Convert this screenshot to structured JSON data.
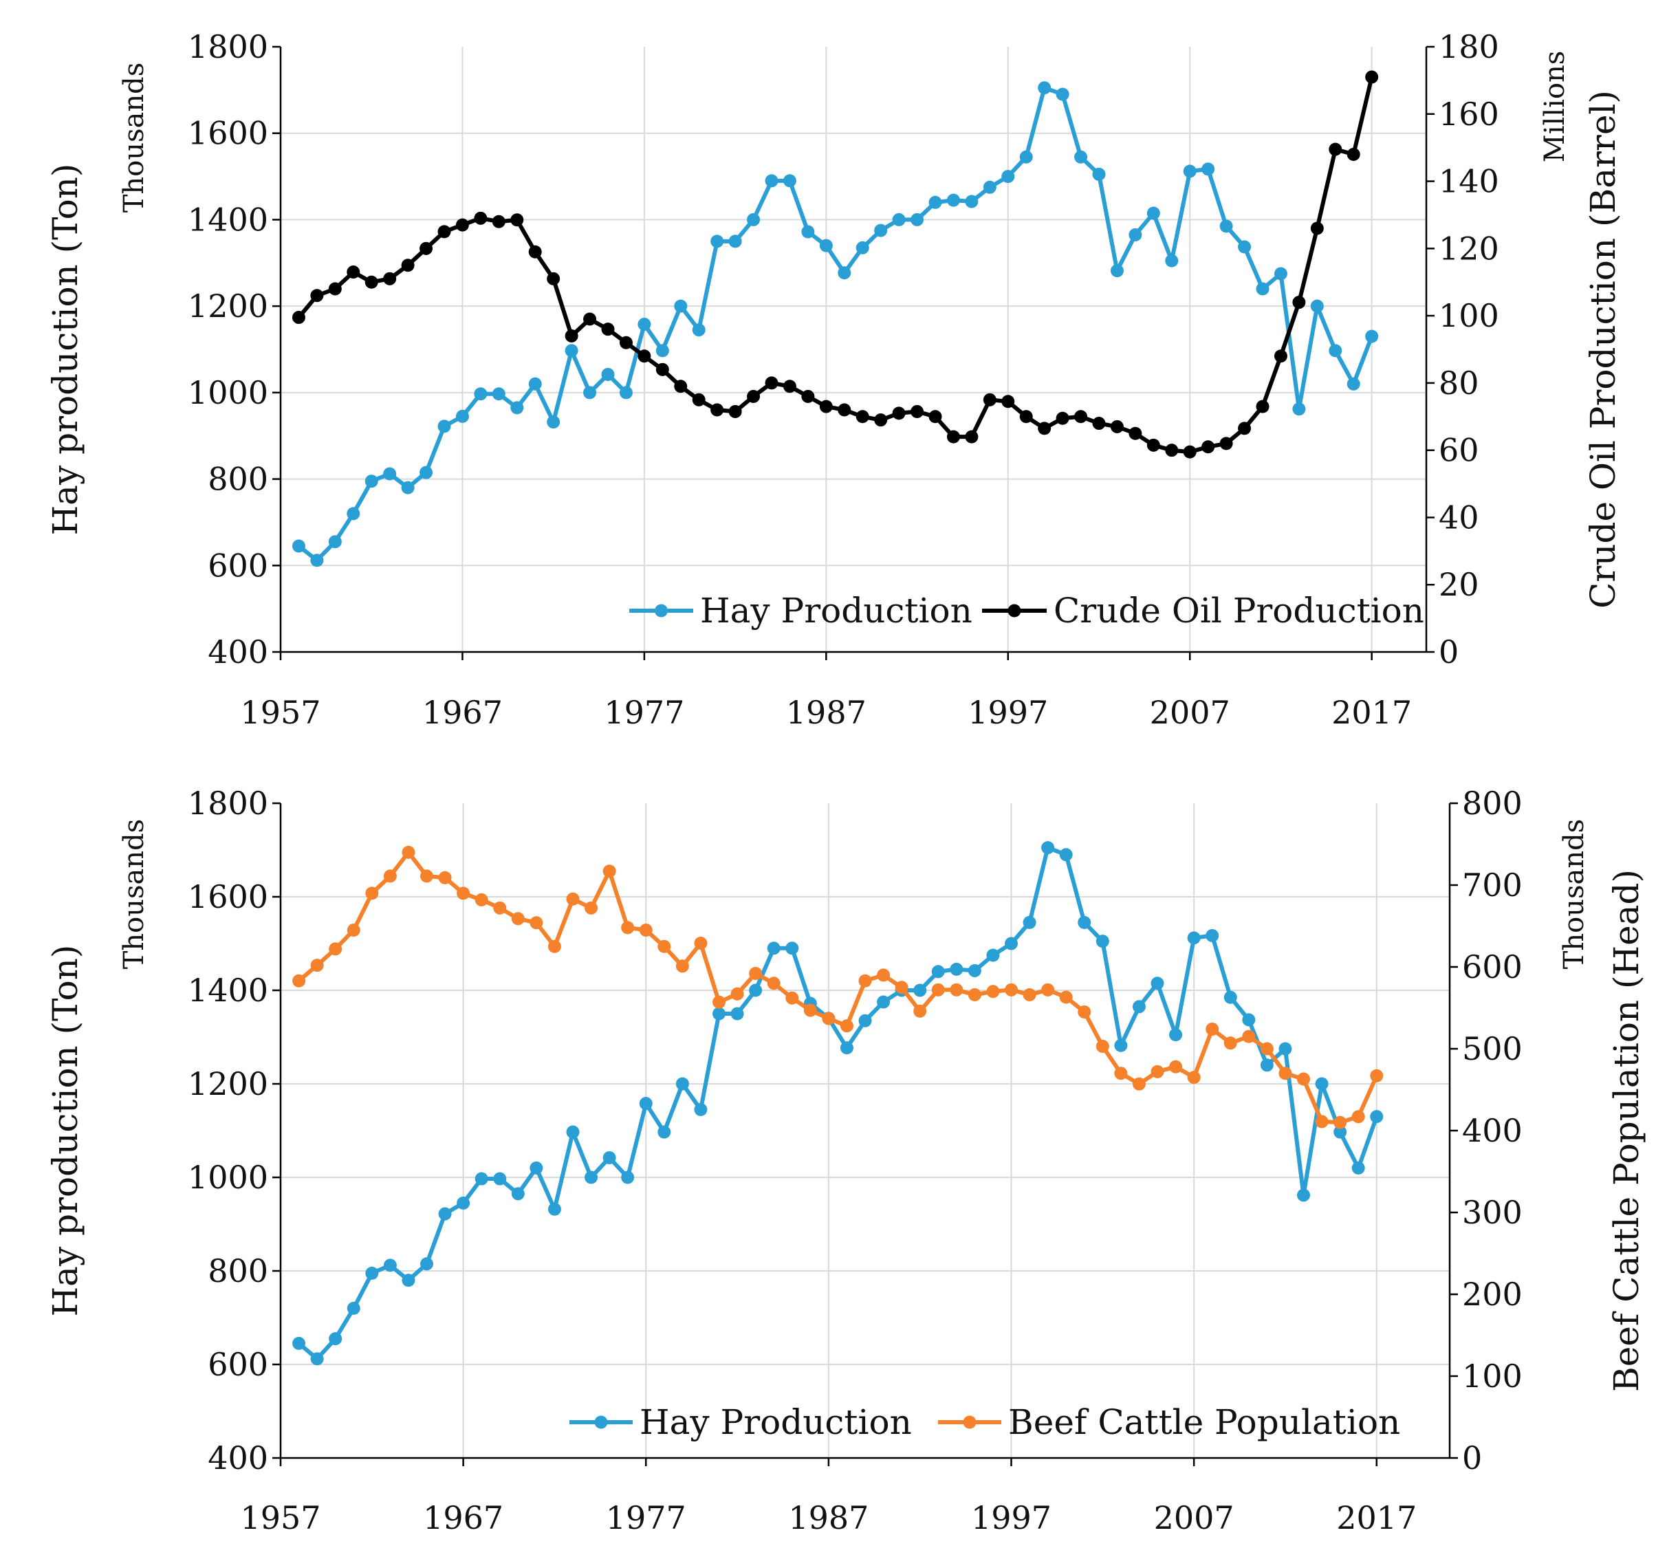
{
  "chart_data": [
    {
      "type": "line",
      "x_ticks": [
        "1957",
        "1967",
        "1977",
        "1987",
        "1997",
        "2007",
        "2017"
      ],
      "xlim": [
        1957,
        2020
      ],
      "ylabel_left": "Hay production (Ton)",
      "ylabel_left_unit": "Thousands",
      "ylim_left": [
        400,
        1800
      ],
      "yticks_left": [
        "400",
        "600",
        "800",
        "1000",
        "1200",
        "1400",
        "1600",
        "1800"
      ],
      "ylabel_right": "Crude Oil Production (Barrel)",
      "ylabel_right_unit": "Millions",
      "ylim_right": [
        0,
        180
      ],
      "yticks_right": [
        "0",
        "20",
        "40",
        "60",
        "80",
        "100",
        "120",
        "140",
        "160",
        "180"
      ],
      "grid": true,
      "legend_position": "bottom-right",
      "series": [
        {
          "name": "Hay Production",
          "axis": "left",
          "color": "#2a9fd6",
          "x": [
            1958,
            1959,
            1960,
            1961,
            1962,
            1963,
            1964,
            1965,
            1966,
            1967,
            1968,
            1969,
            1970,
            1971,
            1972,
            1973,
            1974,
            1975,
            1976,
            1977,
            1978,
            1979,
            1980,
            1981,
            1982,
            1983,
            1984,
            1985,
            1986,
            1987,
            1988,
            1989,
            1990,
            1991,
            1992,
            1993,
            1994,
            1995,
            1996,
            1997,
            1998,
            1999,
            2000,
            2001,
            2002,
            2003,
            2004,
            2005,
            2006,
            2007,
            2008,
            2009,
            2010,
            2011,
            2012,
            2013,
            2014,
            2015,
            2016,
            2017
          ],
          "values": [
            645,
            612,
            655,
            720,
            795,
            812,
            780,
            815,
            922,
            945,
            997,
            997,
            965,
            1020,
            932,
            1097,
            1000,
            1042,
            1000,
            1158,
            1097,
            1200,
            1145,
            1350,
            1350,
            1400,
            1490,
            1490,
            1372,
            1340,
            1277,
            1335,
            1375,
            1400,
            1400,
            1440,
            1445,
            1442,
            1475,
            1500,
            1545,
            1705,
            1690,
            1545,
            1505,
            1282,
            1365,
            1415,
            1305,
            1512,
            1517,
            1385,
            1337,
            1240,
            1275,
            962,
            1200,
            1097,
            1020,
            1130
          ]
        },
        {
          "name": "Crude Oil Production",
          "axis": "right",
          "color": "#000000",
          "x": [
            1958,
            1959,
            1960,
            1961,
            1962,
            1963,
            1964,
            1965,
            1966,
            1967,
            1968,
            1969,
            1970,
            1971,
            1972,
            1973,
            1974,
            1975,
            1976,
            1977,
            1978,
            1979,
            1980,
            1981,
            1982,
            1983,
            1984,
            1985,
            1986,
            1987,
            1988,
            1989,
            1990,
            1991,
            1992,
            1993,
            1994,
            1995,
            1996,
            1997,
            1998,
            1999,
            2000,
            2001,
            2002,
            2003,
            2004,
            2005,
            2006,
            2007,
            2008,
            2009,
            2010,
            2011,
            2012,
            2013,
            2014,
            2015,
            2016,
            2017
          ],
          "values": [
            99.5,
            106,
            108,
            113,
            110,
            111,
            115,
            120,
            125,
            127,
            129,
            128,
            128.5,
            119,
            111,
            94,
            99,
            96,
            92,
            88,
            84,
            79,
            75,
            72,
            71.5,
            76,
            80,
            79,
            76,
            73,
            72,
            70,
            69,
            71,
            71.5,
            70,
            64,
            64,
            75,
            74.5,
            70,
            66.5,
            69.5,
            70,
            68,
            67,
            65,
            61.5,
            60,
            59.5,
            61,
            62,
            66.5,
            73,
            88,
            104,
            126,
            149.5,
            148,
            171
          ]
        }
      ],
      "legend": [
        "Hay Production",
        "Crude Oil Production"
      ]
    },
    {
      "type": "line",
      "x_ticks": [
        "1957",
        "1967",
        "1977",
        "1987",
        "1997",
        "2007",
        "2017"
      ],
      "xlim": [
        1957,
        2021
      ],
      "ylabel_left": "Hay production (Ton)",
      "ylabel_left_unit": "Thousands",
      "ylim_left": [
        400,
        1800
      ],
      "yticks_left": [
        "400",
        "600",
        "800",
        "1000",
        "1200",
        "1400",
        "1600",
        "1800"
      ],
      "ylabel_right": "Beef Cattle Population (Head)",
      "ylabel_right_unit": "Thousands",
      "ylim_right": [
        0,
        800
      ],
      "yticks_right": [
        "0",
        "100",
        "200",
        "300",
        "400",
        "500",
        "600",
        "700",
        "800"
      ],
      "grid": true,
      "legend_position": "bottom-right",
      "series": [
        {
          "name": "Hay Production",
          "axis": "left",
          "color": "#2a9fd6",
          "x": [
            1958,
            1959,
            1960,
            1961,
            1962,
            1963,
            1964,
            1965,
            1966,
            1967,
            1968,
            1969,
            1970,
            1971,
            1972,
            1973,
            1974,
            1975,
            1976,
            1977,
            1978,
            1979,
            1980,
            1981,
            1982,
            1983,
            1984,
            1985,
            1986,
            1987,
            1988,
            1989,
            1990,
            1991,
            1992,
            1993,
            1994,
            1995,
            1996,
            1997,
            1998,
            1999,
            2000,
            2001,
            2002,
            2003,
            2004,
            2005,
            2006,
            2007,
            2008,
            2009,
            2010,
            2011,
            2012,
            2013,
            2014,
            2015,
            2016,
            2017
          ],
          "values": [
            645,
            612,
            655,
            720,
            795,
            812,
            780,
            815,
            922,
            945,
            997,
            997,
            965,
            1020,
            932,
            1097,
            1000,
            1042,
            1000,
            1158,
            1097,
            1200,
            1145,
            1350,
            1350,
            1400,
            1490,
            1490,
            1372,
            1340,
            1277,
            1335,
            1375,
            1400,
            1400,
            1440,
            1445,
            1442,
            1475,
            1500,
            1545,
            1705,
            1690,
            1545,
            1505,
            1282,
            1365,
            1415,
            1305,
            1512,
            1517,
            1385,
            1337,
            1240,
            1275,
            962,
            1200,
            1097,
            1020,
            1130
          ]
        },
        {
          "name": "Beef Cattle Population",
          "axis": "right",
          "color": "#f5822a",
          "x": [
            1958,
            1959,
            1960,
            1961,
            1962,
            1963,
            1964,
            1965,
            1966,
            1967,
            1968,
            1969,
            1970,
            1971,
            1972,
            1973,
            1974,
            1975,
            1976,
            1977,
            1978,
            1979,
            1980,
            1981,
            1982,
            1983,
            1984,
            1985,
            1986,
            1987,
            1988,
            1989,
            1990,
            1991,
            1992,
            1993,
            1994,
            1995,
            1996,
            1997,
            1998,
            1999,
            2000,
            2001,
            2002,
            2003,
            2004,
            2005,
            2006,
            2007,
            2008,
            2009,
            2010,
            2011,
            2012,
            2013,
            2014,
            2015,
            2016,
            2017
          ],
          "values": [
            583,
            602,
            622,
            645,
            690,
            711,
            740,
            711,
            709,
            690,
            682,
            672,
            659,
            654,
            625,
            683,
            672,
            717,
            648,
            645,
            625,
            601,
            629,
            557,
            567,
            592,
            580,
            562,
            547,
            537,
            528,
            583,
            590,
            575,
            546,
            572,
            572,
            566,
            570,
            572,
            566,
            572,
            563,
            545,
            503,
            470,
            457,
            472,
            478,
            465,
            524,
            507,
            515,
            500,
            470,
            463,
            411,
            410,
            417,
            467
          ]
        }
      ],
      "legend": [
        "Hay Production",
        "Beef Cattle Population"
      ]
    }
  ]
}
